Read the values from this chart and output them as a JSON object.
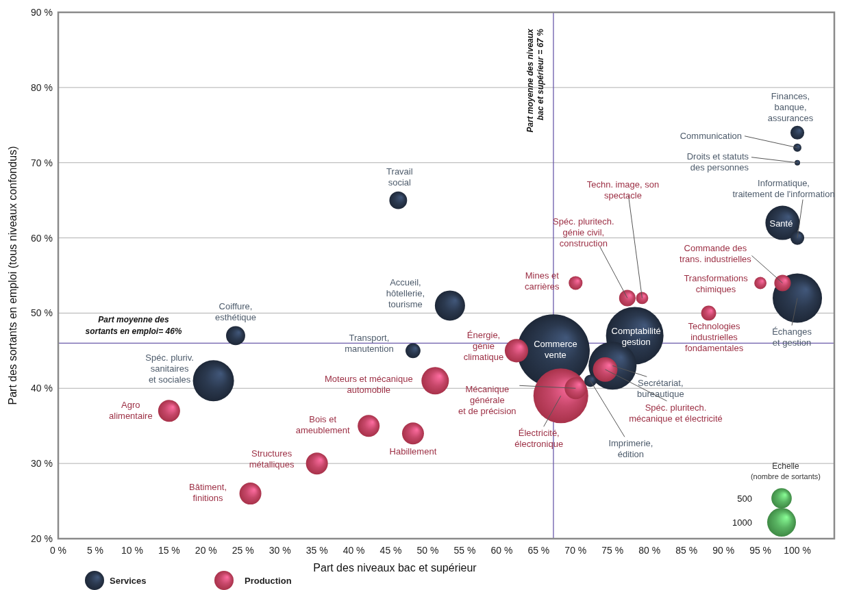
{
  "chart_data": {
    "type": "bubble",
    "xlabel": "Part des niveaux bac et supérieur",
    "ylabel": "Part des sortants en emploi (tous niveaux confondus)",
    "legend_title": "Echelle",
    "size_legend": [
      500,
      1000
    ],
    "xlim": [
      0,
      105
    ],
    "ylim": [
      20,
      90
    ],
    "xticks": [
      {
        "value": 0,
        "label": "0 %"
      },
      {
        "value": 5,
        "label": "5 %"
      },
      {
        "value": 10,
        "label": "10 %"
      },
      {
        "value": 15,
        "label": "15 %"
      },
      {
        "value": 20,
        "label": "20 %"
      },
      {
        "value": 25,
        "label": "25 %"
      },
      {
        "value": 30,
        "label": "30 %"
      },
      {
        "value": 35,
        "label": "35 %"
      },
      {
        "value": 40,
        "label": "40 %"
      },
      {
        "value": 45,
        "label": "45 %"
      },
      {
        "value": 50,
        "label": "50 %"
      },
      {
        "value": 55,
        "label": "55 %"
      },
      {
        "value": 60,
        "label": "60 %"
      },
      {
        "value": 65,
        "label": "65 %"
      },
      {
        "value": 70,
        "label": "70 %"
      },
      {
        "value": 75,
        "label": "75 %"
      },
      {
        "value": 80,
        "label": "80 %"
      },
      {
        "value": 85,
        "label": "85 %"
      },
      {
        "value": 90,
        "label": "90 %"
      },
      {
        "value": 95,
        "label": "95 %"
      },
      {
        "value": 100,
        "label": "100 %"
      }
    ],
    "yticks": [
      {
        "value": 20,
        "label": "20 %"
      },
      {
        "value": 30,
        "label": "30 %"
      },
      {
        "value": 40,
        "label": "40 %"
      },
      {
        "value": 50,
        "label": "50 %"
      },
      {
        "value": 60,
        "label": "60 %"
      },
      {
        "value": 70,
        "label": "70 %"
      },
      {
        "value": 80,
        "label": "80 %"
      },
      {
        "value": 90,
        "label": "90 %"
      }
    ],
    "grid": "y",
    "legend": "bottom left",
    "series": [
      {
        "name": "Services",
        "color": "#1e2838",
        "x": [
          100,
          100,
          100,
          100,
          98,
          100,
          46,
          53,
          24,
          48,
          21,
          67,
          78,
          75,
          72
        ],
        "values": [
          74,
          72,
          70,
          60,
          62,
          52,
          65,
          51,
          47,
          45,
          41,
          45,
          47,
          43,
          41
        ],
        "sizes": [
          230,
          80,
          36,
          230,
          1420,
          2940,
          380,
          1100,
          440,
          270,
          2040,
          6370,
          4000,
          2780,
          180
        ]
      },
      {
        "name": "Production",
        "color": "#a8324a",
        "x": [
          79,
          77,
          70,
          98,
          95,
          88,
          62,
          51,
          70,
          74,
          68,
          15,
          42,
          48,
          35,
          26
        ],
        "values": [
          52,
          52,
          54,
          54,
          54,
          50,
          45,
          41,
          40,
          42.5,
          39,
          37,
          35,
          34,
          30,
          26
        ],
        "sizes": [
          180,
          330,
          230,
          330,
          180,
          270,
          660,
          910,
          580,
          730,
          3630,
          580,
          580,
          580,
          580,
          580
        ]
      }
    ],
    "ref_lines": [
      {
        "axis": "x",
        "value": 67,
        "label": "Part moyenne des niveaux\nbac et supérieur = 67 %",
        "color": "#6a5aaa"
      },
      {
        "axis": "y",
        "value": 46,
        "label": "Part moyenne des\nsortants en emploi= 46%",
        "color": "#6a5aaa"
      }
    ],
    "annotations": [
      {
        "text": "Finances,\nbanque,\nassurances",
        "x": 100,
        "y": 74
      },
      {
        "text": "Communication",
        "x": 100,
        "y": 72
      },
      {
        "text": "Droits et statuts\ndes personnes",
        "x": 100,
        "y": 70
      },
      {
        "text": "Informatique,\ntraitement de l'information",
        "x": 100,
        "y": 60
      },
      {
        "text": "Santé",
        "x": 98,
        "y": 62
      },
      {
        "text": "Échanges\net gestion",
        "x": 100,
        "y": 52
      },
      {
        "text": "Travail\nsocial",
        "x": 46,
        "y": 65
      },
      {
        "text": "Accueil,\nhôtellerie,\ntourisme",
        "x": 53,
        "y": 51
      },
      {
        "text": "Coiffure,\nesthétique",
        "x": 24,
        "y": 47
      },
      {
        "text": "Transport,\nmanutention",
        "x": 48,
        "y": 45
      },
      {
        "text": "Spéc. pluriv.\nsanitaires\net sociales",
        "x": 21,
        "y": 41
      },
      {
        "text": "Commerce\nvente",
        "x": 67,
        "y": 45
      },
      {
        "text": "Comptabilité\ngestion",
        "x": 78,
        "y": 47
      },
      {
        "text": "Secrétariat,\nbureautique",
        "x": 75,
        "y": 43
      },
      {
        "text": "Imprimerie,\nédition",
        "x": 72,
        "y": 41
      },
      {
        "text": "Techn. image, son\nspectacle",
        "x": 79,
        "y": 52
      },
      {
        "text": "Spéc. pluritech.\ngénie civil,\nconstruction",
        "x": 77,
        "y": 52
      },
      {
        "text": "Mines et\ncarrières",
        "x": 70,
        "y": 54
      },
      {
        "text": "Commande des\ntrans. industrielles",
        "x": 98,
        "y": 54
      },
      {
        "text": "Transformations\nchimiques",
        "x": 95,
        "y": 54
      },
      {
        "text": "Technologies\nindustrielles\nfondamentales",
        "x": 88,
        "y": 50
      },
      {
        "text": "Énergie,\ngénie\nclimatique",
        "x": 62,
        "y": 45
      },
      {
        "text": "Moteurs et mécanique\nautomobile",
        "x": 51,
        "y": 41
      },
      {
        "text": "Mécanique\ngénérale\net de précision",
        "x": 70,
        "y": 40
      },
      {
        "text": "Spéc. pluritech.\nmécanique et électricité",
        "x": 74,
        "y": 42.5
      },
      {
        "text": "Électricité,\nélectronique",
        "x": 68,
        "y": 39
      },
      {
        "text": "Agro\nalimentaire",
        "x": 15,
        "y": 37
      },
      {
        "text": "Bois et\nameublement",
        "x": 42,
        "y": 35
      },
      {
        "text": "Habillement",
        "x": 48,
        "y": 34
      },
      {
        "text": "Structures\nmétalliques",
        "x": 35,
        "y": 30
      },
      {
        "text": "Bâtiment,\nfinitions",
        "x": 26,
        "y": 26
      },
      "(nombre de sortants)"
    ]
  }
}
